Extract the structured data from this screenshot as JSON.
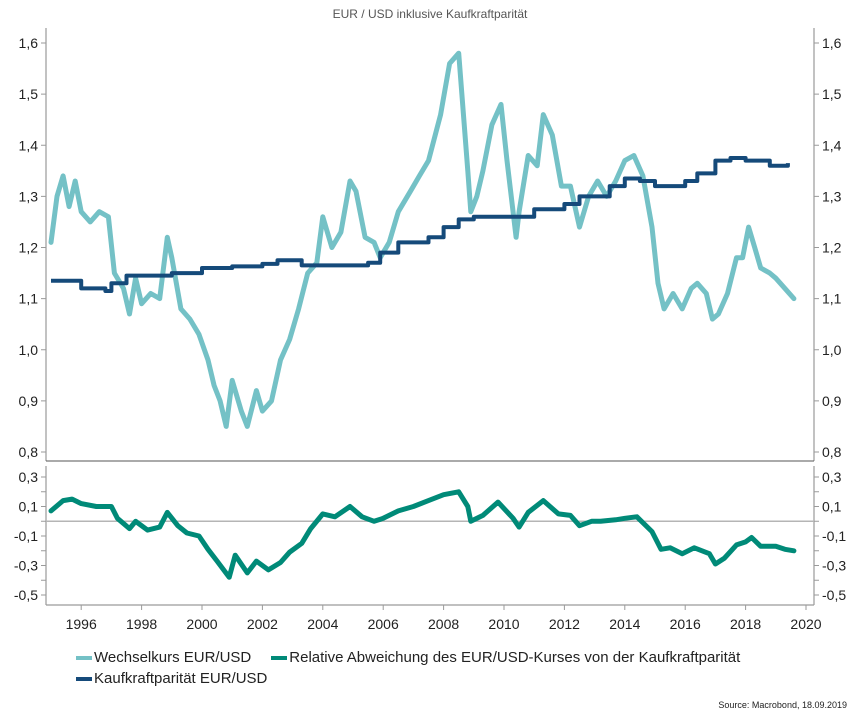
{
  "chart_data": [
    {
      "type": "line",
      "title": "EUR / USD inklusive Kaufkraftparität",
      "xlabel": "",
      "ylabel": "",
      "ylim": [
        0.8,
        1.6
      ],
      "yticks": [
        "1,6",
        "1,5",
        "1,4",
        "1,3",
        "1,2",
        "1,1",
        "1,0",
        "0,9",
        "0,8"
      ],
      "ytick_values": [
        1.6,
        1.5,
        1.4,
        1.3,
        1.2,
        1.1,
        1.0,
        0.9,
        0.8
      ],
      "grid": false,
      "series": [
        {
          "name": "Wechselkurs EUR/USD",
          "color": "#74C1C6",
          "x": [
            1995.0,
            1995.2,
            1995.4,
            1995.6,
            1995.8,
            1996.0,
            1996.3,
            1996.6,
            1996.9,
            1997.1,
            1997.4,
            1997.6,
            1997.8,
            1998.0,
            1998.3,
            1998.6,
            1998.85,
            1999.0,
            1999.3,
            1999.6,
            1999.9,
            2000.2,
            2000.4,
            2000.6,
            2000.8,
            2001.0,
            2001.3,
            2001.5,
            2001.8,
            2002.0,
            2002.3,
            2002.6,
            2002.9,
            2003.2,
            2003.5,
            2003.8,
            2004.0,
            2004.3,
            2004.6,
            2004.9,
            2005.1,
            2005.4,
            2005.7,
            2005.9,
            2006.2,
            2006.5,
            2006.9,
            2007.2,
            2007.5,
            2007.9,
            2008.2,
            2008.5,
            2008.8,
            2008.9,
            2009.1,
            2009.3,
            2009.6,
            2009.9,
            2010.1,
            2010.4,
            2010.5,
            2010.8,
            2011.1,
            2011.3,
            2011.6,
            2011.9,
            2012.2,
            2012.5,
            2012.8,
            2013.1,
            2013.4,
            2013.7,
            2014.0,
            2014.3,
            2014.6,
            2014.9,
            2015.1,
            2015.3,
            2015.6,
            2015.9,
            2016.2,
            2016.4,
            2016.7,
            2016.9,
            2017.1,
            2017.4,
            2017.7,
            2017.9,
            2018.1,
            2018.3,
            2018.5,
            2018.8,
            2019.0,
            2019.3,
            2019.6
          ],
          "values": [
            1.21,
            1.3,
            1.34,
            1.28,
            1.33,
            1.27,
            1.25,
            1.27,
            1.26,
            1.15,
            1.12,
            1.07,
            1.14,
            1.09,
            1.11,
            1.1,
            1.22,
            1.18,
            1.08,
            1.06,
            1.03,
            0.98,
            0.93,
            0.9,
            0.85,
            0.94,
            0.88,
            0.85,
            0.92,
            0.88,
            0.9,
            0.98,
            1.02,
            1.08,
            1.15,
            1.17,
            1.26,
            1.2,
            1.23,
            1.33,
            1.31,
            1.22,
            1.21,
            1.18,
            1.21,
            1.27,
            1.31,
            1.34,
            1.37,
            1.46,
            1.56,
            1.58,
            1.35,
            1.27,
            1.3,
            1.35,
            1.44,
            1.48,
            1.37,
            1.22,
            1.27,
            1.38,
            1.36,
            1.46,
            1.42,
            1.32,
            1.32,
            1.24,
            1.3,
            1.33,
            1.3,
            1.33,
            1.37,
            1.38,
            1.34,
            1.24,
            1.13,
            1.08,
            1.11,
            1.08,
            1.12,
            1.13,
            1.11,
            1.06,
            1.07,
            1.11,
            1.18,
            1.18,
            1.24,
            1.2,
            1.16,
            1.15,
            1.14,
            1.12,
            1.1
          ]
        },
        {
          "name": "Kaufkraftparität EUR/USD",
          "color": "#154A7A",
          "x": [
            1995.0,
            1996.0,
            1996.8,
            1997.0,
            1997.5,
            1998.5,
            1999.0,
            2000.0,
            2001.0,
            2002.0,
            2002.5,
            2003.0,
            2003.3,
            2004.0,
            2005.0,
            2005.5,
            2005.9,
            2006.5,
            2007.5,
            2008.0,
            2008.5,
            2009.0,
            2010.0,
            2011.0,
            2012.0,
            2012.5,
            2013.5,
            2014.0,
            2014.5,
            2015.0,
            2016.0,
            2016.4,
            2017.0,
            2017.5,
            2018.0,
            2018.8,
            2019.4
          ],
          "values": [
            1.135,
            1.12,
            1.115,
            1.13,
            1.145,
            1.145,
            1.15,
            1.16,
            1.163,
            1.168,
            1.175,
            1.175,
            1.165,
            1.165,
            1.165,
            1.17,
            1.19,
            1.21,
            1.22,
            1.24,
            1.255,
            1.26,
            1.26,
            1.275,
            1.285,
            1.3,
            1.32,
            1.335,
            1.33,
            1.32,
            1.33,
            1.345,
            1.37,
            1.375,
            1.37,
            1.36,
            1.365
          ]
        }
      ]
    },
    {
      "type": "line",
      "title": "",
      "ylim": [
        -0.5,
        0.3
      ],
      "yticks": [
        "0,3",
        "0,1",
        "-0,1",
        "-0,3",
        "-0,5"
      ],
      "ytick_values": [
        0.3,
        0.1,
        -0.1,
        -0.3,
        -0.5
      ],
      "xlim": [
        1995,
        2020
      ],
      "xticks": [
        "1996",
        "1998",
        "2000",
        "2002",
        "2004",
        "2006",
        "2008",
        "2010",
        "2012",
        "2014",
        "2016",
        "2018",
        "2020"
      ],
      "xtick_values": [
        1996,
        1998,
        2000,
        2002,
        2004,
        2006,
        2008,
        2010,
        2012,
        2014,
        2016,
        2018,
        2020
      ],
      "reference_line": 0,
      "series": [
        {
          "name": "Relative Abweichung des EUR/USD-Kurses von der Kaufkraftparität",
          "color": "#008A78",
          "x": [
            1995.0,
            1995.4,
            1995.7,
            1996.0,
            1996.5,
            1997.0,
            1997.2,
            1997.6,
            1997.8,
            1998.2,
            1998.6,
            1998.85,
            1999.2,
            1999.5,
            1999.9,
            2000.2,
            2000.5,
            2000.9,
            2001.1,
            2001.5,
            2001.8,
            2002.2,
            2002.6,
            2002.9,
            2003.3,
            2003.6,
            2004.0,
            2004.4,
            2004.9,
            2005.3,
            2005.7,
            2006.0,
            2006.5,
            2007.0,
            2007.5,
            2008.0,
            2008.5,
            2008.8,
            2008.9,
            2009.3,
            2009.8,
            2010.3,
            2010.5,
            2010.8,
            2011.3,
            2011.8,
            2012.2,
            2012.5,
            2012.9,
            2013.2,
            2013.7,
            2014.0,
            2014.4,
            2014.9,
            2015.2,
            2015.5,
            2015.9,
            2016.3,
            2016.8,
            2017.0,
            2017.3,
            2017.7,
            2018.0,
            2018.2,
            2018.5,
            2019.0,
            2019.3,
            2019.6
          ],
          "values": [
            0.07,
            0.14,
            0.15,
            0.12,
            0.1,
            0.1,
            0.02,
            -0.05,
            0.0,
            -0.06,
            -0.04,
            0.06,
            -0.03,
            -0.08,
            -0.1,
            -0.19,
            -0.27,
            -0.38,
            -0.23,
            -0.35,
            -0.27,
            -0.33,
            -0.28,
            -0.21,
            -0.15,
            -0.05,
            0.05,
            0.03,
            0.1,
            0.03,
            0.0,
            0.02,
            0.07,
            0.1,
            0.14,
            0.18,
            0.2,
            0.1,
            0.0,
            0.04,
            0.13,
            0.02,
            -0.04,
            0.06,
            0.14,
            0.05,
            0.04,
            -0.03,
            0.0,
            0.0,
            0.01,
            0.02,
            0.03,
            -0.07,
            -0.19,
            -0.18,
            -0.22,
            -0.18,
            -0.22,
            -0.29,
            -0.25,
            -0.16,
            -0.14,
            -0.11,
            -0.17,
            -0.17,
            -0.19,
            -0.2
          ]
        }
      ]
    }
  ],
  "legend": {
    "items": [
      {
        "label": "Wechselkurs EUR/USD",
        "color": "#74C1C6"
      },
      {
        "label": "Relative Abweichung des EUR/USD-Kurses von der Kaufkraftparität",
        "color": "#008A78"
      },
      {
        "label": "Kaufkraftparität EUR/USD",
        "color": "#154A7A"
      }
    ]
  },
  "source": "Source: Macrobond, 18.09.2019"
}
